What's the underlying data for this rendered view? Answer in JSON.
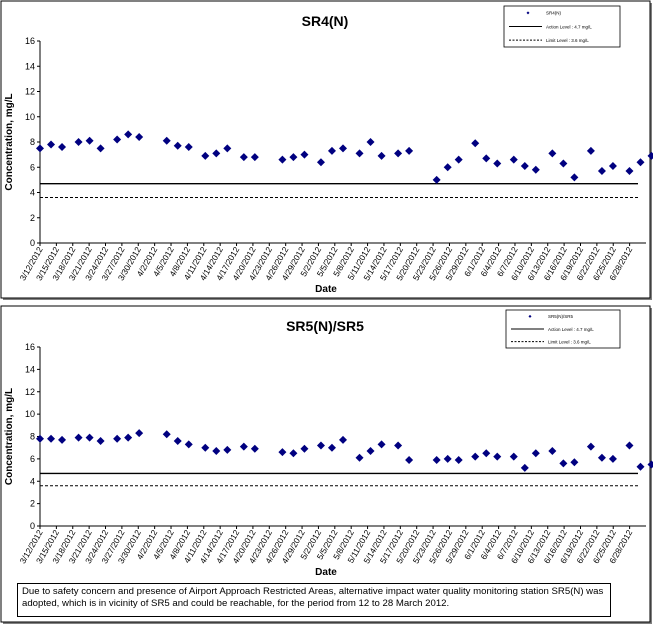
{
  "chart_data": [
    {
      "type": "scatter",
      "title": "SR4(N)",
      "xlabel": "Date",
      "ylabel": "Concentration, mg/L",
      "ylim": [
        0,
        16
      ],
      "yticks": [
        "0",
        "2",
        "4",
        "6",
        "8",
        "10",
        "12",
        "14",
        "16"
      ],
      "xlim": [
        "2012-03-12",
        "2012-06-30"
      ],
      "xtick_labels": [
        "3/12/2012",
        "3/15/2012",
        "3/18/2012",
        "3/21/2012",
        "3/24/2012",
        "3/27/2012",
        "3/30/2012",
        "4/2/2012",
        "4/5/2012",
        "4/8/2012",
        "4/11/2012",
        "4/14/2012",
        "4/17/2012",
        "4/20/2012",
        "4/23/2012",
        "4/26/2012",
        "4/29/2012",
        "5/2/2012",
        "5/5/2012",
        "5/8/2012",
        "5/11/2012",
        "5/14/2012",
        "5/17/2012",
        "5/20/2012",
        "5/23/2012",
        "5/26/2012",
        "5/29/2012",
        "6/1/2012",
        "6/4/2012",
        "6/7/2012",
        "6/10/2012",
        "6/13/2012",
        "6/16/2012",
        "6/19/2012",
        "6/22/2012",
        "6/25/2012",
        "6/28/2012"
      ],
      "legend": {
        "placement": "top-right",
        "entries": [
          "SR4(N)",
          "Action Level : 4.7 mg/L",
          "Limit Level : 3.6 mg/L"
        ]
      },
      "lines": [
        {
          "name": "Action Level",
          "y": 4.7,
          "style": "solid"
        },
        {
          "name": "Limit Level",
          "y": 3.6,
          "style": "dashed"
        }
      ],
      "series": [
        {
          "name": "SR4(N)",
          "color": "#000080",
          "x": [
            "2012-03-12",
            "2012-03-14",
            "2012-03-16",
            "2012-03-19",
            "2012-03-21",
            "2012-03-23",
            "2012-03-26",
            "2012-03-28",
            "2012-03-30",
            "2012-04-04",
            "2012-04-06",
            "2012-04-08",
            "2012-04-11",
            "2012-04-13",
            "2012-04-15",
            "2012-04-18",
            "2012-04-20",
            "2012-04-25",
            "2012-04-27",
            "2012-04-29",
            "2012-05-02",
            "2012-05-04",
            "2012-05-06",
            "2012-05-09",
            "2012-05-11",
            "2012-05-13",
            "2012-05-16",
            "2012-05-18",
            "2012-05-23",
            "2012-05-25",
            "2012-05-27",
            "2012-05-30",
            "2012-06-01",
            "2012-06-03",
            "2012-06-06",
            "2012-06-08",
            "2012-06-10",
            "2012-06-13",
            "2012-06-15",
            "2012-06-17",
            "2012-06-20",
            "2012-06-22",
            "2012-06-24",
            "2012-06-27",
            "2012-06-29",
            "2012-07-01"
          ],
          "y": [
            7.5,
            7.8,
            7.6,
            8.0,
            8.1,
            7.5,
            8.2,
            8.6,
            8.4,
            8.1,
            7.7,
            7.6,
            6.9,
            7.1,
            7.5,
            6.8,
            6.8,
            6.6,
            6.8,
            7.0,
            6.4,
            7.3,
            7.5,
            7.1,
            8.0,
            6.9,
            7.1,
            7.3,
            5.0,
            6.0,
            6.6,
            7.9,
            6.7,
            6.3,
            6.6,
            6.1,
            5.8,
            7.1,
            6.3,
            5.2,
            7.3,
            5.7,
            6.1,
            5.7,
            6.4,
            6.9
          ]
        }
      ]
    },
    {
      "type": "scatter",
      "title": "SR5(N)/SR5",
      "xlabel": "Date",
      "ylabel": "Concentration, mg/L",
      "ylim": [
        0,
        16
      ],
      "yticks": [
        "0",
        "2",
        "4",
        "6",
        "8",
        "10",
        "12",
        "14",
        "16"
      ],
      "xlim": [
        "2012-03-12",
        "2012-06-30"
      ],
      "xtick_labels": [
        "3/12/2012",
        "3/15/2012",
        "3/18/2012",
        "3/21/2012",
        "3/24/2012",
        "3/27/2012",
        "3/30/2012",
        "4/2/2012",
        "4/5/2012",
        "4/8/2012",
        "4/11/2012",
        "4/14/2012",
        "4/17/2012",
        "4/20/2012",
        "4/23/2012",
        "4/26/2012",
        "4/29/2012",
        "5/2/2012",
        "5/5/2012",
        "5/8/2012",
        "5/11/2012",
        "5/14/2012",
        "5/17/2012",
        "5/20/2012",
        "5/23/2012",
        "5/26/2012",
        "5/29/2012",
        "6/1/2012",
        "6/4/2012",
        "6/7/2012",
        "6/10/2012",
        "6/13/2012",
        "6/16/2012",
        "6/19/2012",
        "6/22/2012",
        "6/25/2012",
        "6/28/2012"
      ],
      "legend": {
        "placement": "top-right",
        "entries": [
          "SR5(N)/SR5",
          "Action Level : 4.7 mg/L",
          "Limit Level : 3.6 mg/L"
        ]
      },
      "lines": [
        {
          "name": "Action Level",
          "y": 4.7,
          "style": "solid"
        },
        {
          "name": "Limit Level",
          "y": 3.6,
          "style": "dashed"
        }
      ],
      "series": [
        {
          "name": "SR5(N)/SR5",
          "color": "#000080",
          "x": [
            "2012-03-12",
            "2012-03-14",
            "2012-03-16",
            "2012-03-19",
            "2012-03-21",
            "2012-03-23",
            "2012-03-26",
            "2012-03-28",
            "2012-03-30",
            "2012-04-04",
            "2012-04-06",
            "2012-04-08",
            "2012-04-11",
            "2012-04-13",
            "2012-04-15",
            "2012-04-18",
            "2012-04-20",
            "2012-04-25",
            "2012-04-27",
            "2012-04-29",
            "2012-05-02",
            "2012-05-04",
            "2012-05-06",
            "2012-05-09",
            "2012-05-11",
            "2012-05-13",
            "2012-05-16",
            "2012-05-18",
            "2012-05-23",
            "2012-05-25",
            "2012-05-27",
            "2012-05-30",
            "2012-06-01",
            "2012-06-03",
            "2012-06-06",
            "2012-06-08",
            "2012-06-10",
            "2012-06-13",
            "2012-06-15",
            "2012-06-17",
            "2012-06-20",
            "2012-06-22",
            "2012-06-24",
            "2012-06-27",
            "2012-06-29",
            "2012-07-01"
          ],
          "y": [
            7.8,
            7.8,
            7.7,
            7.9,
            7.9,
            7.6,
            7.8,
            7.9,
            8.3,
            8.2,
            7.6,
            7.3,
            7.0,
            6.7,
            6.8,
            7.1,
            6.9,
            6.6,
            6.5,
            6.9,
            7.2,
            7.0,
            7.7,
            6.1,
            6.7,
            7.3,
            7.2,
            5.9,
            5.9,
            6.0,
            5.9,
            6.2,
            6.5,
            6.2,
            6.2,
            5.2,
            6.5,
            6.7,
            5.6,
            5.7,
            7.1,
            6.1,
            6.0,
            7.2,
            5.3,
            5.5
          ]
        }
      ]
    }
  ],
  "note": "Due to safety concern and presence of Airport Approach Restricted Areas, alternative impact water quality monitoring station SR5(N) was adopted, which is in vicinity of SR5 and could be reachable, for the period from 12 to 28 March 2012."
}
